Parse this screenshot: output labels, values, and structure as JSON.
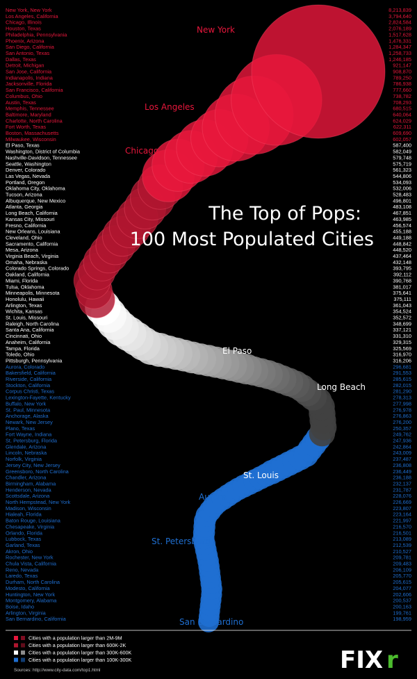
{
  "title_line1": "The Top of Pops:",
  "title_line2": "100 Most Populated Cities",
  "colors": {
    "red": "#e8173c",
    "dark_red": "#b0162f",
    "white": "#ffffff",
    "gray": "#8a8a8a",
    "blue": "#1f6fd1",
    "green": "#4cbb2e"
  },
  "legend": [
    {
      "label": "Cities with a population larger than 2M-9M",
      "color": "#e8173c"
    },
    {
      "label": "Cities with a population larger than 600K-2K",
      "color": "#b0162f"
    },
    {
      "label": "Cities with a population larger than 300K-600K",
      "color": "#ffffff"
    },
    {
      "label": "Cities with a population larger than 100K-300K",
      "color": "#1f6fd1"
    }
  ],
  "source": "Sources: http://www.city-data.com/top1.html",
  "logo": {
    "text": "FIX",
    "accent": "r"
  },
  "chart_data": {
    "type": "bubble",
    "value_label": "population",
    "curve_labels": [
      "New York",
      "Los Angeles",
      "Chicago",
      "El Paso",
      "Long Beach",
      "St. Louis",
      "Aurora",
      "St. Petersburg",
      "San Bernardino"
    ],
    "cities": [
      {
        "name": "New York, New York",
        "population": "8,213,839",
        "value": 8213839,
        "group": "red"
      },
      {
        "name": "Los Angeles, California",
        "population": "3,794,640",
        "value": 3794640,
        "group": "red"
      },
      {
        "name": "Chicago, Illinois",
        "population": "2,824,584",
        "value": 2824584,
        "group": "red"
      },
      {
        "name": "Houston, Texas",
        "population": "2,076,189",
        "value": 2076189,
        "group": "red"
      },
      {
        "name": "Philadelphia, Pennsylvania",
        "population": "1,517,628",
        "value": 1517628,
        "group": "red"
      },
      {
        "name": "Phoenix, Arizona",
        "population": "1,476,331",
        "value": 1476331,
        "group": "red"
      },
      {
        "name": "San Diego, California",
        "population": "1,284,347",
        "value": 1284347,
        "group": "red"
      },
      {
        "name": "San Antonio, Texas",
        "population": "1,258,733",
        "value": 1258733,
        "group": "red"
      },
      {
        "name": "Dallas, Texas",
        "population": "1,246,185",
        "value": 1246185,
        "group": "red"
      },
      {
        "name": "Detroit, Michigan",
        "population": "921,147",
        "value": 921147,
        "group": "red"
      },
      {
        "name": "San Jose, California",
        "population": "908,870",
        "value": 908870,
        "group": "red"
      },
      {
        "name": "Indianapolis, Indiana",
        "population": "789,250",
        "value": 789250,
        "group": "red"
      },
      {
        "name": "Jacksonville, Florida",
        "population": "786,938",
        "value": 786938,
        "group": "red"
      },
      {
        "name": "San Francisco, California",
        "population": "777,660",
        "value": 777660,
        "group": "red"
      },
      {
        "name": "Columbus, Ohio",
        "population": "738,782",
        "value": 738782,
        "group": "red"
      },
      {
        "name": "Austin, Texas",
        "population": "708,293",
        "value": 708293,
        "group": "red"
      },
      {
        "name": "Memphis, Tennessee",
        "population": "680,515",
        "value": 680515,
        "group": "red"
      },
      {
        "name": "Baltimore, Maryland",
        "population": "640,064",
        "value": 640064,
        "group": "red"
      },
      {
        "name": "Charlotte, North Carolina",
        "population": "624,029",
        "value": 624029,
        "group": "red"
      },
      {
        "name": "Fort Worth, Texas",
        "population": "622,311",
        "value": 622311,
        "group": "red"
      },
      {
        "name": "Boston, Massachusetts",
        "population": "609,690",
        "value": 609690,
        "group": "red"
      },
      {
        "name": "Milwaukee, Wisconsin",
        "population": "602,057",
        "value": 602057,
        "group": "red"
      },
      {
        "name": "El Paso, Texas",
        "population": "587,400",
        "value": 587400,
        "group": "white"
      },
      {
        "name": "Washington, District of Columbia",
        "population": "582,049",
        "value": 582049,
        "group": "white"
      },
      {
        "name": "Nashville-Davidson, Tennessee",
        "population": "579,748",
        "value": 579748,
        "group": "white"
      },
      {
        "name": "Seattle, Washington",
        "population": "575,719",
        "value": 575719,
        "group": "white"
      },
      {
        "name": "Denver, Colorado",
        "population": "561,323",
        "value": 561323,
        "group": "white"
      },
      {
        "name": "Las Vegas, Nevada",
        "population": "544,806",
        "value": 544806,
        "group": "white"
      },
      {
        "name": "Portland, Oregon",
        "population": "534,093",
        "value": 534093,
        "group": "white"
      },
      {
        "name": "Oklahoma City, Oklahoma",
        "population": "532,006",
        "value": 532006,
        "group": "white"
      },
      {
        "name": "Tucson, Arizona",
        "population": "528,483",
        "value": 528483,
        "group": "white"
      },
      {
        "name": "Albuquerque, New Mexico",
        "population": "496,801",
        "value": 496801,
        "group": "white"
      },
      {
        "name": "Atlanta, Georgia",
        "population": "483,108",
        "value": 483108,
        "group": "white"
      },
      {
        "name": "Long Beach, California",
        "population": "467,851",
        "value": 467851,
        "group": "white"
      },
      {
        "name": "Kansas City, Missouri",
        "population": "463,985",
        "value": 463985,
        "group": "white"
      },
      {
        "name": "Fresno, California",
        "population": "456,574",
        "value": 456574,
        "group": "white"
      },
      {
        "name": "New Orleans, Louisiana",
        "population": "455,188",
        "value": 455188,
        "group": "white"
      },
      {
        "name": "Cleveland, Ohio",
        "population": "449,188",
        "value": 449188,
        "group": "white"
      },
      {
        "name": "Sacramento, California",
        "population": "448,842",
        "value": 448842,
        "group": "white"
      },
      {
        "name": "Mesa, Arizona",
        "population": "448,520",
        "value": 448520,
        "group": "white"
      },
      {
        "name": "Virginia Beach, Virginia",
        "population": "437,464",
        "value": 437464,
        "group": "white"
      },
      {
        "name": "Omaha, Nebraska",
        "population": "432,148",
        "value": 432148,
        "group": "white"
      },
      {
        "name": "Colorado Springs, Colorado",
        "population": "393,795",
        "value": 393795,
        "group": "white"
      },
      {
        "name": "Oakland, California",
        "population": "392,112",
        "value": 392112,
        "group": "white"
      },
      {
        "name": "Miami, Florida",
        "population": "390,768",
        "value": 390768,
        "group": "white"
      },
      {
        "name": "Tulsa, Oklahoma",
        "population": "381,017",
        "value": 381017,
        "group": "white"
      },
      {
        "name": "Minneapolis, Minnesota",
        "population": "375,641",
        "value": 375641,
        "group": "white"
      },
      {
        "name": "Honolulu, Hawaii",
        "population": "375,111",
        "value": 375111,
        "group": "white"
      },
      {
        "name": "Arlington, Texas",
        "population": "361,043",
        "value": 361043,
        "group": "white"
      },
      {
        "name": "Wichita, Kansas",
        "population": "354,524",
        "value": 354524,
        "group": "white"
      },
      {
        "name": "St. Louis, Missouri",
        "population": "352,572",
        "value": 352572,
        "group": "white"
      },
      {
        "name": "Raleigh, North Carolina",
        "population": "348,699",
        "value": 348699,
        "group": "white"
      },
      {
        "name": "Santa Ana, California",
        "population": "337,121",
        "value": 337121,
        "group": "white"
      },
      {
        "name": "Cincinnati, Ohio",
        "population": "331,310",
        "value": 331310,
        "group": "white"
      },
      {
        "name": "Anaheim, California",
        "population": "329,315",
        "value": 329315,
        "group": "white"
      },
      {
        "name": "Tampa, Florida",
        "population": "325,569",
        "value": 325569,
        "group": "white"
      },
      {
        "name": "Toledo, Ohio",
        "population": "316,970",
        "value": 316970,
        "group": "white"
      },
      {
        "name": "Pittsburgh, Pennsylvania",
        "population": "316,206",
        "value": 316206,
        "group": "white"
      },
      {
        "name": "Aurora, Colorado",
        "population": "296,681",
        "value": 296681,
        "group": "blue"
      },
      {
        "name": "Bakersfield, California",
        "population": "291,553",
        "value": 291553,
        "group": "blue"
      },
      {
        "name": "Riverside, California",
        "population": "285,615",
        "value": 285615,
        "group": "blue"
      },
      {
        "name": "Stockton, California",
        "population": "282,015",
        "value": 282015,
        "group": "blue"
      },
      {
        "name": "Corpus Christi, Texas",
        "population": "281,290",
        "value": 281290,
        "group": "blue"
      },
      {
        "name": "Lexington-Fayette, Kentucky",
        "population": "278,313",
        "value": 278313,
        "group": "blue"
      },
      {
        "name": "Buffalo, New York",
        "population": "277,998",
        "value": 277998,
        "group": "blue"
      },
      {
        "name": "St. Paul, Minnesota",
        "population": "276,978",
        "value": 276978,
        "group": "blue"
      },
      {
        "name": "Anchorage, Alaska",
        "population": "276,863",
        "value": 276863,
        "group": "blue"
      },
      {
        "name": "Newark, New Jersey",
        "population": "276,200",
        "value": 276200,
        "group": "blue"
      },
      {
        "name": "Plano, Texas",
        "population": "250,357",
        "value": 250357,
        "group": "blue"
      },
      {
        "name": "Fort Wayne, Indiana",
        "population": "249,762",
        "value": 249762,
        "group": "blue"
      },
      {
        "name": "St. Petersburg, Florida",
        "population": "247,936",
        "value": 247936,
        "group": "blue"
      },
      {
        "name": "Glendale, Arizona",
        "population": "242,864",
        "value": 242864,
        "group": "blue"
      },
      {
        "name": "Lincoln, Nebraska",
        "population": "243,009",
        "value": 243009,
        "group": "blue"
      },
      {
        "name": "Norfolk, Virginia",
        "population": "237,487",
        "value": 237487,
        "group": "blue"
      },
      {
        "name": "Jersey City, New Jersey",
        "population": "236,808",
        "value": 236808,
        "group": "blue"
      },
      {
        "name": "Greensboro, North Carolina",
        "population": "236,449",
        "value": 236449,
        "group": "blue"
      },
      {
        "name": "Chandler, Arizona",
        "population": "236,188",
        "value": 236188,
        "group": "blue"
      },
      {
        "name": "Birmingham, Alabama",
        "population": "232,137",
        "value": 232137,
        "group": "blue"
      },
      {
        "name": "Henderson, Nevada",
        "population": "231,787",
        "value": 231787,
        "group": "blue"
      },
      {
        "name": "Scottsdale, Arizona",
        "population": "228,076",
        "value": 228076,
        "group": "blue"
      },
      {
        "name": "North Hempstead, New York",
        "population": "226,669",
        "value": 226669,
        "group": "blue"
      },
      {
        "name": "Madison, Wisconsin",
        "population": "223,807",
        "value": 223807,
        "group": "blue"
      },
      {
        "name": "Hialeah, Florida",
        "population": "223,164",
        "value": 223164,
        "group": "blue"
      },
      {
        "name": "Baton Rouge, Louisiana",
        "population": "221,997",
        "value": 221997,
        "group": "blue"
      },
      {
        "name": "Chesapeake, Virginia",
        "population": "216,570",
        "value": 216570,
        "group": "blue"
      },
      {
        "name": "Orlando, Florida",
        "population": "216,501",
        "value": 216501,
        "group": "blue"
      },
      {
        "name": "Lubbock, Texas",
        "population": "213,089",
        "value": 213089,
        "group": "blue"
      },
      {
        "name": "Garland, Texas",
        "population": "212,539",
        "value": 212539,
        "group": "blue"
      },
      {
        "name": "Akron, Ohio",
        "population": "210,527",
        "value": 210527,
        "group": "blue"
      },
      {
        "name": "Rochester, New York",
        "population": "209,781",
        "value": 209781,
        "group": "blue"
      },
      {
        "name": "Chula Vista, California",
        "population": "209,483",
        "value": 209483,
        "group": "blue"
      },
      {
        "name": "Reno, Nevada",
        "population": "206,109",
        "value": 206109,
        "group": "blue"
      },
      {
        "name": "Laredo, Texas",
        "population": "205,770",
        "value": 205770,
        "group": "blue"
      },
      {
        "name": "Durham, North Carolina",
        "population": "205,615",
        "value": 205615,
        "group": "blue"
      },
      {
        "name": "Modesto, California",
        "population": "204,077",
        "value": 204077,
        "group": "blue"
      },
      {
        "name": "Huntington, New York",
        "population": "202,606",
        "value": 202606,
        "group": "blue"
      },
      {
        "name": "Montgomery, Alabama",
        "population": "200,537",
        "value": 200537,
        "group": "blue"
      },
      {
        "name": "Boise, Idaho",
        "population": "200,163",
        "value": 200163,
        "group": "blue"
      },
      {
        "name": "Arlington, Virginia",
        "population": "199,761",
        "value": 199761,
        "group": "blue"
      },
      {
        "name": "San Bernardino, California",
        "population": "198,959",
        "value": 198959,
        "group": "blue"
      }
    ]
  }
}
